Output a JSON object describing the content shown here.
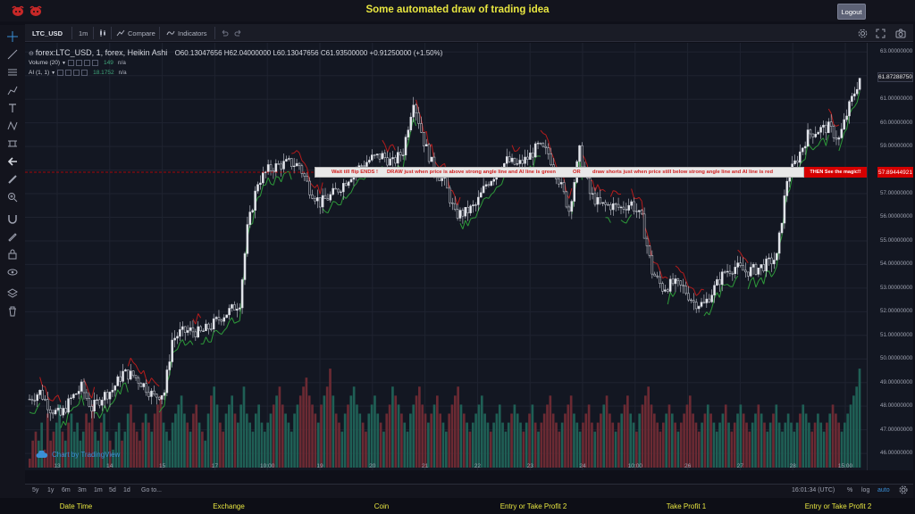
{
  "app": {
    "title": "Some automated draw of trading idea",
    "logout_label": "Logout"
  },
  "toolbar": {
    "symbol": "LTC_USD",
    "interval": "1m",
    "compare_label": "Compare",
    "indicators_label": "Indicators"
  },
  "legend": {
    "symbol_line": "forex:LTC_USD, 1, forex, Heikin Ashi",
    "ohlc": "O60.13047656  H62.04000000  L60.13047656  C61.93500000  +0.91250000 (+1.50%)",
    "volume_label": "Volume (20)",
    "volume_value": "149",
    "volume_na": "n/a",
    "ai_label": "AI (1, 1)",
    "ai_value": "18.1752",
    "ai_na": "n/a"
  },
  "annotation": {
    "text1": "Wait till flip ENDS  !",
    "text2": "DRAW  just when  price is above strong angle line and AI line is green",
    "text3": "OR",
    "text4": "draw shorts just when price still below strong angle line and AI line is red",
    "text5": "THEN See the magic!!"
  },
  "price_axis": {
    "labels": [
      "63.00000000",
      "62.00000000",
      "61.00000000",
      "60.00000000",
      "59.00000000",
      "58.00000000",
      "57.00000000",
      "56.00000000",
      "55.00000000",
      "54.00000000",
      "53.00000000",
      "52.00000000",
      "51.00000000",
      "50.00000000",
      "49.00000000",
      "48.00000000",
      "47.00000000",
      "46.00000000"
    ],
    "current_price": "57.89444921",
    "last_price": "61.87288750"
  },
  "time_axis": {
    "labels": [
      "13",
      "14",
      "15",
      "17",
      "10:00",
      "19",
      "20",
      "21",
      "22",
      "23",
      "24",
      "10:00",
      "26",
      "27",
      "28",
      "15:00"
    ]
  },
  "watermark": "Chart by TradingView",
  "bottom": {
    "ranges": [
      "5y",
      "1y",
      "6m",
      "3m",
      "1m",
      "5d",
      "1d"
    ],
    "goto": "Go to...",
    "clock": "16:01:34 (UTC)",
    "percent": "%",
    "log": "log",
    "auto": "auto"
  },
  "footer": {
    "tabs": [
      "Date Time",
      "Exchange",
      "Coin",
      "Entry or Take Profit 2",
      "Take Profit 1",
      "Entry or Take Profit 2"
    ]
  },
  "colors": {
    "up": "#26a69a",
    "down": "#ef5350",
    "accent": "#e8e640",
    "ai_green": "#2e9b3a",
    "ai_red": "#b71c1c"
  },
  "chart_data": {
    "type": "candlestick",
    "price_range": [
      45.7,
      63.2
    ],
    "price_path_knots": [
      [
        0,
        48.3
      ],
      [
        4,
        48.6
      ],
      [
        8,
        47.9
      ],
      [
        12,
        47.6
      ],
      [
        16,
        48.3
      ],
      [
        20,
        48.8
      ],
      [
        24,
        47.9
      ],
      [
        28,
        48.4
      ],
      [
        32,
        48.7
      ],
      [
        36,
        49.4
      ],
      [
        40,
        49.3
      ],
      [
        44,
        48.9
      ],
      [
        48,
        48.4
      ],
      [
        52,
        48.6
      ],
      [
        55,
        50.8
      ],
      [
        58,
        51.1
      ],
      [
        62,
        51.2
      ],
      [
        66,
        51.1
      ],
      [
        70,
        51.4
      ],
      [
        74,
        51.8
      ],
      [
        78,
        52.1
      ],
      [
        81,
        52.4
      ],
      [
        84,
        55.5
      ],
      [
        88,
        57.5
      ],
      [
        92,
        58.0
      ],
      [
        96,
        58.2
      ],
      [
        100,
        58.3
      ],
      [
        104,
        58.2
      ],
      [
        108,
        57.2
      ],
      [
        112,
        56.6
      ],
      [
        116,
        56.9
      ],
      [
        120,
        57.3
      ],
      [
        124,
        57.8
      ],
      [
        128,
        58.2
      ],
      [
        132,
        58.5
      ],
      [
        136,
        58.6
      ],
      [
        140,
        58.3
      ],
      [
        144,
        58.8
      ],
      [
        148,
        61.0
      ],
      [
        152,
        59.2
      ],
      [
        156,
        58.0
      ],
      [
        160,
        57.5
      ],
      [
        164,
        56.1
      ],
      [
        168,
        56.2
      ],
      [
        172,
        56.5
      ],
      [
        176,
        57.4
      ],
      [
        180,
        57.9
      ],
      [
        184,
        58.4
      ],
      [
        188,
        58.2
      ],
      [
        192,
        58.5
      ],
      [
        196,
        59.0
      ],
      [
        200,
        58.7
      ],
      [
        204,
        57.6
      ],
      [
        208,
        56.3
      ],
      [
        212,
        58.8
      ],
      [
        216,
        57.0
      ],
      [
        220,
        56.5
      ],
      [
        224,
        56.5
      ],
      [
        228,
        56.4
      ],
      [
        232,
        56.6
      ],
      [
        236,
        55.9
      ],
      [
        240,
        53.7
      ],
      [
        244,
        53.0
      ],
      [
        248,
        53.2
      ],
      [
        252,
        53.0
      ],
      [
        256,
        52.4
      ],
      [
        260,
        52.3
      ],
      [
        264,
        53.0
      ],
      [
        268,
        53.7
      ],
      [
        272,
        53.9
      ],
      [
        276,
        53.7
      ],
      [
        280,
        53.8
      ],
      [
        284,
        54.0
      ],
      [
        288,
        54.3
      ],
      [
        292,
        57.6
      ],
      [
        296,
        58.5
      ],
      [
        300,
        59.5
      ],
      [
        304,
        59.7
      ],
      [
        308,
        59.8
      ],
      [
        312,
        59.3
      ],
      [
        316,
        60.7
      ],
      [
        320,
        61.9
      ]
    ],
    "volume_range": [
      0,
      12
    ],
    "volume_bars": [
      1,
      3,
      4,
      3,
      5,
      2,
      6,
      3,
      4,
      5,
      7,
      4,
      3,
      5,
      6,
      4,
      5,
      3,
      4,
      6,
      5,
      7,
      4,
      3,
      5,
      6,
      4,
      3,
      2,
      4,
      5,
      3,
      4,
      6,
      7,
      5,
      4,
      3,
      5,
      6,
      5,
      4,
      6,
      7,
      8,
      5,
      4,
      3,
      5,
      6,
      7,
      8,
      6,
      5,
      4,
      6,
      7,
      5,
      4,
      3,
      6,
      8,
      9,
      7,
      5,
      4,
      6,
      7,
      8,
      6,
      5,
      7,
      9,
      6,
      5,
      4,
      6,
      7,
      5,
      4,
      5,
      6,
      7,
      8,
      9,
      7,
      6,
      5,
      4,
      6,
      7,
      8,
      9,
      10,
      8,
      7,
      6,
      5,
      7,
      8,
      9,
      11,
      8,
      6,
      5,
      4,
      6,
      7,
      8,
      9,
      7,
      6,
      5,
      4,
      6,
      7,
      8,
      6,
      5,
      4,
      6,
      7,
      9,
      8,
      7,
      6,
      5,
      4,
      6,
      7,
      8,
      9,
      7,
      6,
      5,
      6,
      7,
      8,
      6,
      5,
      4,
      6,
      7,
      8,
      9,
      7,
      6,
      5,
      4,
      5,
      6,
      7,
      8,
      6,
      5,
      4,
      5,
      6,
      7,
      5,
      4,
      5,
      6,
      7,
      6,
      5,
      4,
      5,
      6,
      7,
      5,
      4,
      5,
      6,
      7,
      8,
      6,
      5,
      4,
      5,
      6,
      7,
      8,
      6,
      5,
      4,
      5,
      6,
      7,
      5,
      4,
      5,
      6,
      7,
      8,
      6,
      5,
      4,
      5,
      6,
      7,
      8,
      6,
      5,
      4,
      6,
      7,
      8,
      9,
      7,
      6,
      5,
      4,
      5,
      6,
      7,
      6,
      5,
      4,
      5,
      6,
      7,
      8,
      6,
      5,
      4,
      5,
      6,
      7,
      6,
      5,
      4,
      5,
      6,
      7,
      5,
      4,
      5,
      6,
      7,
      6,
      5,
      4,
      5,
      6,
      7,
      6,
      5,
      4,
      5,
      6,
      7,
      5,
      4,
      5,
      6,
      5,
      4,
      5,
      6,
      7,
      6,
      5,
      4,
      5,
      6,
      5,
      4,
      5,
      6,
      7,
      6,
      5,
      4,
      5,
      6,
      7,
      8,
      9,
      11
    ]
  }
}
